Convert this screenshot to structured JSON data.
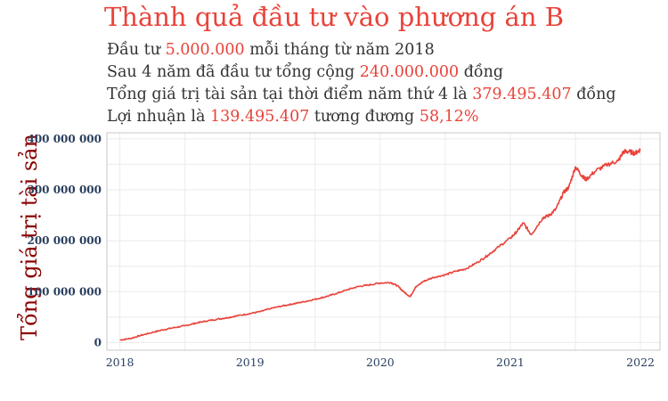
{
  "title": "Thành quả đầu tư vào phương án B",
  "summary": {
    "line1": {
      "pre": "Đầu tư ",
      "value": "5.000.000",
      "post": " mỗi tháng từ năm 2018"
    },
    "line2": {
      "pre": "Sau 4 năm đã đầu tư tổng cộng ",
      "value": "240.000.000",
      "post": " đồng"
    },
    "line3": {
      "pre": "Tổng giá trị tài sản tại thời điểm năm thứ 4 là ",
      "value": "379.495.407",
      "post": " đồng"
    },
    "line4": {
      "pre": "Lợi nhuận là ",
      "value": "139.495.407",
      "mid": " tương đương ",
      "value2": "58,12%"
    }
  },
  "colors": {
    "title": "#e8433a",
    "highlight": "#e8433a",
    "line": "#e8433a",
    "ylabel": "#8b0000"
  },
  "chart_data": {
    "type": "line",
    "ylabel": "Tổng giá trị tài sản",
    "xlabel": "",
    "xlim": [
      2017.9,
      2022.15
    ],
    "ylim": [
      -15000000,
      412000000
    ],
    "yticks": [
      0,
      100000000,
      200000000,
      300000000,
      400000000
    ],
    "ytick_labels": [
      "0",
      "100 000 000",
      "200 000 000",
      "300 000 000",
      "400 000 000"
    ],
    "xticks": [
      2018,
      2019,
      2020,
      2021,
      2022
    ],
    "xtick_labels": [
      "2018",
      "2019",
      "2020",
      "2021",
      "2022"
    ],
    "grid": true,
    "series": [
      {
        "x": [
          2018.0,
          2018.08,
          2018.16,
          2018.25,
          2018.33,
          2018.41,
          2018.5,
          2018.58,
          2018.66,
          2018.75,
          2018.83,
          2018.91,
          2019.0,
          2019.08,
          2019.16,
          2019.25,
          2019.33,
          2019.41,
          2019.5,
          2019.58,
          2019.66,
          2019.75,
          2019.83,
          2019.91,
          2020.0,
          2020.08,
          2020.13,
          2020.18,
          2020.23,
          2020.27,
          2020.33,
          2020.41,
          2020.5,
          2020.58,
          2020.66,
          2020.75,
          2020.83,
          2020.91,
          2021.0,
          2021.05,
          2021.1,
          2021.16,
          2021.25,
          2021.3,
          2021.35,
          2021.41,
          2021.45,
          2021.5,
          2021.55,
          2021.58,
          2021.66,
          2021.75,
          2021.83,
          2021.87,
          2021.91,
          2021.96,
          2022.0
        ],
        "y": [
          5000000,
          8000000,
          14000000,
          20000000,
          25000000,
          29000000,
          33000000,
          38000000,
          42000000,
          46000000,
          49000000,
          53000000,
          57000000,
          61000000,
          67000000,
          72000000,
          76000000,
          80000000,
          85000000,
          90000000,
          96000000,
          104000000,
          110000000,
          113000000,
          117000000,
          118000000,
          112000000,
          100000000,
          90000000,
          108000000,
          120000000,
          128000000,
          133000000,
          140000000,
          145000000,
          158000000,
          172000000,
          188000000,
          205000000,
          218000000,
          235000000,
          212000000,
          245000000,
          250000000,
          262000000,
          295000000,
          305000000,
          345000000,
          328000000,
          320000000,
          338000000,
          350000000,
          357000000,
          375000000,
          375000000,
          372000000,
          379000000
        ]
      }
    ]
  }
}
